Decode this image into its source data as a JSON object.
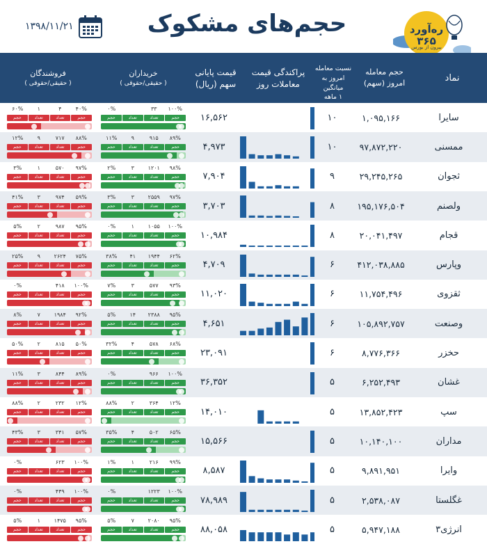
{
  "header": {
    "title": "حجم‌های مشکوک",
    "date": "۱۳۹۸/۱۱/۲۱",
    "logo_brand": "ره‌آورد ۳۶۵",
    "logo_sub": "بیرون از بورس"
  },
  "columns": {
    "name": "نماد",
    "volume": [
      "حجم معامله",
      "امروز (سهم)"
    ],
    "ratio": [
      "نسبت معامله",
      "امروز به میانگین",
      "۱ ماهه"
    ],
    "spread": [
      "پراکندگی قیمت",
      "معاملات روز"
    ],
    "price": [
      "قیمت پایانی",
      "سهم (ریال)"
    ],
    "buyers": [
      "خریداران",
      "( حقیقی/حقوقی )"
    ],
    "sellers": [
      "فروشندگان",
      "( حقیقی/حقوقی )"
    ]
  },
  "flow_labels": {
    "volume": "حجم",
    "count": "تعداد"
  },
  "colors": {
    "header_bg": "#244a75",
    "buy": "#2e9a4a",
    "sell": "#d6343c",
    "spark": "#1f5f9e"
  },
  "rows": [
    {
      "name": "سایرا",
      "volume": "۱,۰۹۵,۱۶۶",
      "ratio": "۱۰",
      "price": "۱۶,۵۶۲",
      "spark": [
        0,
        0,
        0,
        0,
        0,
        0,
        0,
        0,
        1
      ],
      "buy": {
        "legal_pct": "۰%",
        "legal_count": "",
        "real_count": "۳۳",
        "real_pct": "۱۰۰%"
      },
      "sell": {
        "legal_pct": "۶۰%",
        "legal_count": "۱",
        "real_count": "۴",
        "real_pct": "۴۰%"
      },
      "buy_fill": 1.0,
      "sell_fill": 0.4
    },
    {
      "name": "ممسنی",
      "volume": "۹۷,۸۷۲,۲۲۰",
      "ratio": "۱۰",
      "price": "۴,۹۷۳",
      "spark": [
        1,
        0.2,
        0.15,
        0.15,
        0.2,
        0.15,
        0.1,
        0,
        1
      ],
      "buy": {
        "legal_pct": "۱۱%",
        "legal_count": "۹",
        "real_count": "۹۱۵",
        "real_pct": "۸۹%"
      },
      "sell": {
        "legal_pct": "۱۲%",
        "legal_count": "۹",
        "real_count": "۷۱۷",
        "real_pct": "۸۸%"
      },
      "buy_fill": 0.89,
      "sell_fill": 0.88
    },
    {
      "name": "ثجوان",
      "volume": "۲۹,۲۴۵,۲۶۵",
      "ratio": "۹",
      "price": "۷,۹۰۴",
      "spark": [
        1,
        0.3,
        0.1,
        0.1,
        0.15,
        0.1,
        0.1,
        0,
        0.9
      ],
      "buy": {
        "legal_pct": "۲%",
        "legal_count": "۳",
        "real_count": "۱۲۰۱",
        "real_pct": "۹۸%"
      },
      "sell": {
        "legal_pct": "۳%",
        "legal_count": "۱",
        "real_count": "۵۷۰",
        "real_pct": "۹۷%"
      },
      "buy_fill": 0.98,
      "sell_fill": 0.97
    },
    {
      "name": "ولصنم",
      "volume": "۱۹۵,۱۷۶,۵۰۴",
      "ratio": "۸",
      "price": "۳,۷۰۳",
      "spark": [
        1,
        0.1,
        0.1,
        0.08,
        0.1,
        0.08,
        0.05,
        0,
        0.7
      ],
      "buy": {
        "legal_pct": "۳%",
        "legal_count": "۳",
        "real_count": "۲۵۵۹",
        "real_pct": "۹۷%"
      },
      "sell": {
        "legal_pct": "۴۱%",
        "legal_count": "۳",
        "real_count": "۹۷۴",
        "real_pct": "۵۹%"
      },
      "buy_fill": 0.97,
      "sell_fill": 0.59
    },
    {
      "name": "قجام",
      "volume": "۲۰,۰۴۱,۴۹۷",
      "ratio": "۸",
      "price": "۱۰,۹۸۴",
      "spark": [
        0.1,
        0.05,
        0.05,
        0.05,
        0.05,
        0.05,
        0.05,
        0.05,
        1
      ],
      "buy": {
        "legal_pct": "۰%",
        "legal_count": "۱",
        "real_count": "۱۰۵۵",
        "real_pct": "۱۰۰%"
      },
      "sell": {
        "legal_pct": "۵%",
        "legal_count": "۲",
        "real_count": "۹۸۷",
        "real_pct": "۹۵%"
      },
      "buy_fill": 1.0,
      "sell_fill": 0.95
    },
    {
      "name": "وپارس",
      "volume": "۴۱۲,۰۳۸,۸۸۵",
      "ratio": "۶",
      "price": "۴,۷۰۹",
      "spark": [
        1,
        0.15,
        0.1,
        0.1,
        0.1,
        0.1,
        0.1,
        0.05,
        0.9
      ],
      "buy": {
        "legal_pct": "۳۸%",
        "legal_count": "۴۱",
        "real_count": "۱۹۴۴",
        "real_pct": "۶۲%"
      },
      "sell": {
        "legal_pct": "۲۵%",
        "legal_count": "۹",
        "real_count": "۲۶۲۴",
        "real_pct": "۷۵%"
      },
      "buy_fill": 0.62,
      "sell_fill": 0.75
    },
    {
      "name": "ثقزوی",
      "volume": "۱۱,۷۵۴,۴۹۶",
      "ratio": "۶",
      "price": "۱۱,۰۲۰",
      "spark": [
        1,
        0.2,
        0.15,
        0.1,
        0.1,
        0.1,
        0.2,
        0.1,
        1
      ],
      "buy": {
        "legal_pct": "۷%",
        "legal_count": "۳",
        "real_count": "۵۷۷",
        "real_pct": "۹۳%"
      },
      "sell": {
        "legal_pct": "۰%",
        "legal_count": "",
        "real_count": "۴۱۸",
        "real_pct": "۱۰۰%"
      },
      "buy_fill": 0.93,
      "sell_fill": 1.0
    },
    {
      "name": "وصنعت",
      "volume": "۱۰۵,۸۹۲,۷۵۷",
      "ratio": "۶",
      "price": "۴,۶۵۱",
      "spark": [
        0.2,
        0.2,
        0.3,
        0.35,
        0.6,
        0.7,
        0.4,
        0.8,
        1
      ],
      "buy": {
        "legal_pct": "۵%",
        "legal_count": "۱۴",
        "real_count": "۲۳۸۸",
        "real_pct": "۹۵%"
      },
      "sell": {
        "legal_pct": "۸%",
        "legal_count": "۷",
        "real_count": "۱۹۸۴",
        "real_pct": "۹۲%"
      },
      "buy_fill": 0.95,
      "sell_fill": 0.92
    },
    {
      "name": "حخزر",
      "volume": "۸,۷۷۶,۳۶۶",
      "ratio": "۶",
      "price": "۲۳,۰۹۱",
      "spark": [
        0,
        0,
        0,
        0,
        0,
        0,
        0,
        0,
        1
      ],
      "buy": {
        "legal_pct": "۳۲%",
        "legal_count": "۴",
        "real_count": "۵۷۸",
        "real_pct": "۶۸%"
      },
      "sell": {
        "legal_pct": "۵۰%",
        "legal_count": "۲",
        "real_count": "۸۱۵",
        "real_pct": "۵۰%"
      },
      "buy_fill": 0.68,
      "sell_fill": 0.5
    },
    {
      "name": "غشان",
      "volume": "۶,۲۵۲,۴۹۳",
      "ratio": "۵",
      "price": "۳۶,۳۵۲",
      "spark": [
        0,
        0,
        0,
        0,
        0,
        0,
        0,
        0,
        1
      ],
      "buy": {
        "legal_pct": "۰%",
        "legal_count": "",
        "real_count": "۹۶۶",
        "real_pct": "۱۰۰%"
      },
      "sell": {
        "legal_pct": "۱۱%",
        "legal_count": "۳",
        "real_count": "۸۴۴",
        "real_pct": "۸۹%"
      },
      "buy_fill": 1.0,
      "sell_fill": 0.89
    },
    {
      "name": "سپ",
      "volume": "۱۳,۸۵۲,۴۲۳",
      "ratio": "۵",
      "price": "۱۴,۰۱۰",
      "spark": [
        0,
        0,
        0.6,
        0.1,
        0.1,
        0.1,
        0.1,
        0,
        0
      ],
      "buy": {
        "legal_pct": "۸۸%",
        "legal_count": "۲",
        "real_count": "۳۶۴",
        "real_pct": "۱۲%"
      },
      "sell": {
        "legal_pct": "۸۸%",
        "legal_count": "۲",
        "real_count": "۲۳۲",
        "real_pct": "۱۲%"
      },
      "buy_fill": 0.12,
      "sell_fill": 0.12
    },
    {
      "name": "مداران",
      "volume": "۱۰,۱۴۰,۱۰۰",
      "ratio": "۵",
      "price": "۱۵,۵۶۶",
      "spark": [
        0,
        0,
        0,
        0,
        0,
        0,
        0,
        0,
        1
      ],
      "buy": {
        "legal_pct": "۳۵%",
        "legal_count": "۴",
        "real_count": "۵۰۲",
        "real_pct": "۶۵%"
      },
      "sell": {
        "legal_pct": "۴۳%",
        "legal_count": "۳",
        "real_count": "۳۴۱",
        "real_pct": "۵۷%"
      },
      "buy_fill": 0.65,
      "sell_fill": 0.57
    },
    {
      "name": "وایرا",
      "volume": "۹,۸۹۱,۹۵۱",
      "ratio": "۵",
      "price": "۸,۵۸۷",
      "spark": [
        1,
        0.3,
        0.2,
        0.15,
        0.15,
        0.15,
        0.1,
        0.05,
        0.9
      ],
      "buy": {
        "legal_pct": "۱%",
        "legal_count": "۱",
        "real_count": "۲۱۶",
        "real_pct": "۹۹%"
      },
      "sell": {
        "legal_pct": "۰%",
        "legal_count": "",
        "real_count": "۶۲۳",
        "real_pct": "۱۰۰%"
      },
      "buy_fill": 0.99,
      "sell_fill": 1.0
    },
    {
      "name": "غگلستا",
      "volume": "۲,۵۳۸,۰۸۷",
      "ratio": "۵",
      "price": "۷۸,۹۸۹",
      "spark": [
        0.9,
        0.1,
        0.1,
        0.1,
        0.1,
        0.1,
        0.1,
        0.05,
        1
      ],
      "buy": {
        "legal_pct": "۰%",
        "legal_count": "",
        "real_count": "۱۲۲۳",
        "real_pct": "۱۰۰%"
      },
      "sell": {
        "legal_pct": "۰%",
        "legal_count": "",
        "real_count": "۴۴۹",
        "real_pct": "۱۰۰%"
      },
      "buy_fill": 1.0,
      "sell_fill": 1.0
    },
    {
      "name": "انرژی۳",
      "volume": "۵,۹۴۷,۱۸۸",
      "ratio": "۵",
      "price": "۸۸,۰۵۸",
      "spark": [
        0.5,
        0.4,
        0.4,
        0.4,
        0.4,
        0.3,
        0.4,
        0.3,
        0.4
      ],
      "buy": {
        "legal_pct": "۵%",
        "legal_count": "۷",
        "real_count": "۲۰۸۰",
        "real_pct": "۹۵%"
      },
      "sell": {
        "legal_pct": "۵%",
        "legal_count": "۱",
        "real_count": "۱۴۷۵",
        "real_pct": "۹۵%"
      },
      "buy_fill": 0.95,
      "sell_fill": 0.95
    }
  ]
}
